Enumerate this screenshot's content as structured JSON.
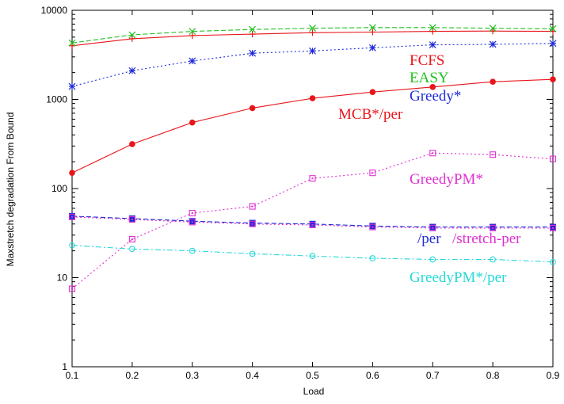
{
  "chart_data": {
    "type": "line",
    "title": "",
    "xlabel": "Load",
    "ylabel": "Maxstretch degradation From Bound",
    "xlim": [
      0.1,
      0.9
    ],
    "ylim": [
      1,
      10000
    ],
    "yscale": "log",
    "grid": false,
    "x_ticks": [
      "0.1",
      "0.2",
      "0.3",
      "0.4",
      "0.5",
      "0.6",
      "0.7",
      "0.8",
      "0.9"
    ],
    "y_ticks": [
      "1",
      "10",
      "100",
      "1000",
      "10000"
    ],
    "x": [
      0.1,
      0.2,
      0.3,
      0.4,
      0.5,
      0.6,
      0.7,
      0.8,
      0.9
    ],
    "series": [
      {
        "name": "FCFS",
        "color": "#e8151b",
        "style": "solid",
        "marker": "plus",
        "values": [
          4000,
          4800,
          5200,
          5400,
          5600,
          5700,
          5800,
          5850,
          5800
        ]
      },
      {
        "name": "EASY",
        "color": "#1fc11f",
        "style": "dashed",
        "marker": "x",
        "values": [
          4300,
          5300,
          5800,
          6100,
          6300,
          6400,
          6400,
          6300,
          6200
        ]
      },
      {
        "name": "Greedy*",
        "color": "#1e2bd8",
        "style": "dotted",
        "marker": "star",
        "values": [
          1400,
          2100,
          2700,
          3300,
          3500,
          3800,
          4100,
          4150,
          4250
        ]
      },
      {
        "name": "MCB*/per",
        "color": "#e8151b",
        "style": "solid",
        "marker": "circle-filled",
        "values": [
          150,
          315,
          550,
          800,
          1030,
          1210,
          1380,
          1580,
          1680
        ]
      },
      {
        "name": "GreedyPM*",
        "color": "#e030d0",
        "style": "dotted",
        "marker": "square",
        "values": [
          7.5,
          27,
          53,
          63,
          130,
          150,
          250,
          240,
          215
        ]
      },
      {
        "name": "/per",
        "color": "#1e2bd8",
        "style": "dashed",
        "marker": "square-filled",
        "values": [
          49,
          46,
          43,
          41,
          40,
          38,
          37,
          37,
          37
        ]
      },
      {
        "name": "/stretch-per",
        "color": "#e030d0",
        "style": "dotted",
        "marker": "square",
        "values": [
          48,
          45,
          42,
          40,
          39,
          37,
          36,
          36,
          36
        ]
      },
      {
        "name": "GreedyPM*/per",
        "color": "#26d8d8",
        "style": "dashdot",
        "marker": "circle",
        "values": [
          23,
          21,
          20,
          18.5,
          17.5,
          16.5,
          16,
          16,
          15
        ]
      }
    ],
    "annotations": [
      "FCFS",
      "EASY",
      "Greedy*",
      "MCB*/per",
      "GreedyPM*",
      "/per",
      "/stretch-per",
      "GreedyPM*/per"
    ]
  }
}
